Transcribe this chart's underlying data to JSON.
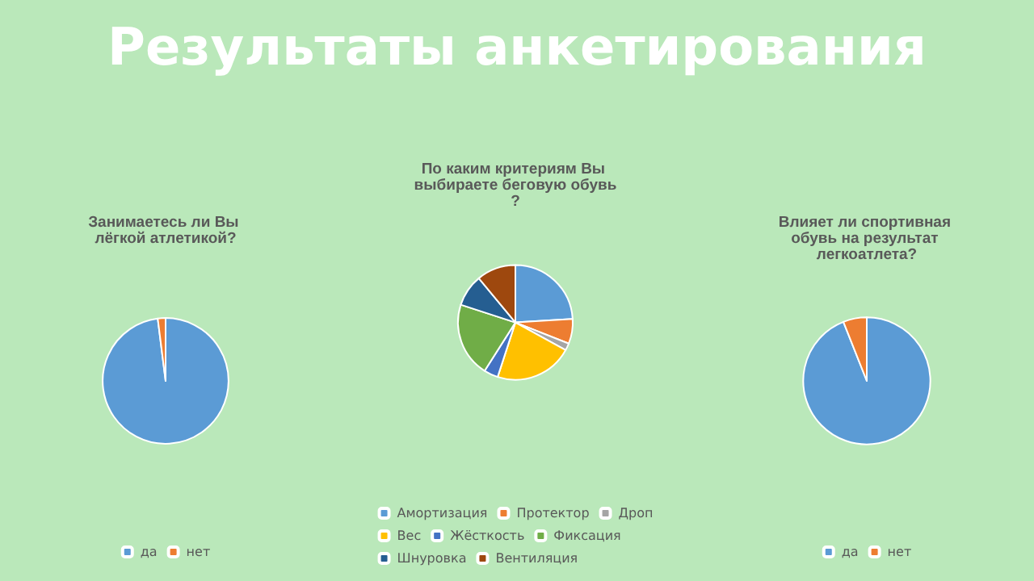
{
  "chart_data": [
    {
      "type": "other",
      "title": "Результаты анкетирования"
    },
    {
      "type": "pie",
      "title": "Занимаетесь ли Вы лёгкой атлетикой?",
      "categories": [
        "да",
        "нет"
      ],
      "values": [
        98,
        2
      ],
      "colors": [
        "#5b9bd5",
        "#ed7d31"
      ],
      "legend": "bottom"
    },
    {
      "type": "pie",
      "title": "По каким критериям Вы выбираете беговую обувь?",
      "categories": [
        "Амортизация",
        "Протектор",
        "Дроп",
        "Вес",
        "Жёсткость",
        "Фиксация",
        "Шнуровка",
        "Вентиляция"
      ],
      "values": [
        24,
        7,
        2,
        22,
        4,
        21,
        9,
        11
      ],
      "colors": [
        "#5b9bd5",
        "#ed7d31",
        "#a5a5a5",
        "#ffc000",
        "#4472c4",
        "#70ad47",
        "#255e91",
        "#9e480e"
      ],
      "legend": "bottom"
    },
    {
      "type": "pie",
      "title": "Влияет ли спортивная обувь на результат легкоатлета?",
      "categories": [
        "да",
        "нет"
      ],
      "values": [
        94,
        6
      ],
      "colors": [
        "#5b9bd5",
        "#ed7d31"
      ],
      "legend": "bottom"
    }
  ]
}
